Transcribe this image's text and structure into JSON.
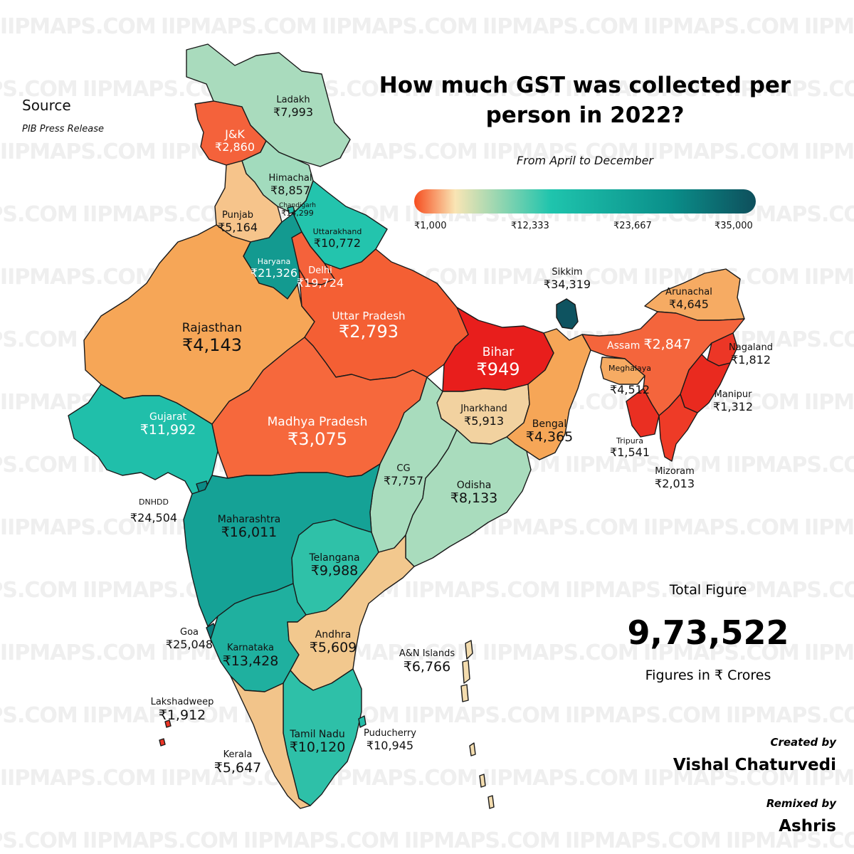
{
  "title": "How much GST was collected per person in 2022?",
  "subtitle": "From April to December",
  "source": {
    "heading": "Source",
    "text": "PIB Press Release"
  },
  "legend": {
    "ticks": [
      "₹1,000",
      "₹12,333",
      "₹23,667",
      "₹35,000"
    ],
    "min": 1000,
    "max": 35000,
    "colors": [
      "#f64d1f",
      "#f9e5b4",
      "#1fc4ad",
      "#0a8f8a",
      "#0e4f5c"
    ]
  },
  "total": {
    "label": "Total Figure",
    "value": "9,73,522",
    "unit_note": "Figures in ₹ Crores"
  },
  "credits": {
    "created_label": "Created by",
    "created_name": "Vishal Chaturvedi",
    "remixed_label": "Remixed by",
    "remixed_name": "Ashris"
  },
  "watermark": "IIPMAPS.COM",
  "regions": [
    {
      "name": "Ladakh",
      "value": "₹7,993",
      "color": "#a9dbbd"
    },
    {
      "name": "J&K",
      "value": "₹2,860",
      "color": "#f4623b"
    },
    {
      "name": "Himachal",
      "value": "₹8,857",
      "color": "#a2dbbd"
    },
    {
      "name": "Chandigarh",
      "value": "₹14,299",
      "color": "#22c0ac"
    },
    {
      "name": "Punjab",
      "value": "₹5,164",
      "color": "#f6c48b"
    },
    {
      "name": "Uttarakhand",
      "value": "₹10,772",
      "color": "#23c4ad"
    },
    {
      "name": "Haryana",
      "value": "₹21,326",
      "color": "#139a90"
    },
    {
      "name": "Delhi",
      "value": "₹19,724",
      "color": "#f4623b"
    },
    {
      "name": "Rajasthan",
      "value": "₹4,143",
      "color": "#f6a657"
    },
    {
      "name": "Uttar Pradesh",
      "value": "₹2,793",
      "color": "#f45f34"
    },
    {
      "name": "Bihar",
      "value": "₹949",
      "color": "#e81e1c"
    },
    {
      "name": "Sikkim",
      "value": "₹34,319",
      "color": "#0e5360"
    },
    {
      "name": "Arunachal",
      "value": "₹4,645",
      "color": "#f6ab63"
    },
    {
      "name": "Assam",
      "value": "₹2,847",
      "color": "#f4653c"
    },
    {
      "name": "Nagaland",
      "value": "₹1,812",
      "color": "#ec3626"
    },
    {
      "name": "Meghalaya",
      "value": "₹4,512",
      "color": "#f6ab63"
    },
    {
      "name": "Manipur",
      "value": "₹1,312",
      "color": "#e92a1f"
    },
    {
      "name": "Tripura",
      "value": "₹1,541",
      "color": "#ea2f22"
    },
    {
      "name": "Mizoram",
      "value": "₹2,013",
      "color": "#ee3b27"
    },
    {
      "name": "Gujarat",
      "value": "₹11,992",
      "color": "#20bfaa"
    },
    {
      "name": "DNHDD",
      "value": "₹24,504",
      "color": "#0b8a86"
    },
    {
      "name": "Madhya Pradesh",
      "value": "₹3,075",
      "color": "#f6683c"
    },
    {
      "name": "Jharkhand",
      "value": "₹5,913",
      "color": "#f2d2a0"
    },
    {
      "name": "Bengal",
      "value": "₹4,365",
      "color": "#f6a657"
    },
    {
      "name": "CG",
      "value": "₹7,757",
      "color": "#a8dcbd"
    },
    {
      "name": "Odisha",
      "value": "₹8,133",
      "color": "#a9dcbd"
    },
    {
      "name": "Maharashtra",
      "value": "₹16,011",
      "color": "#15a296"
    },
    {
      "name": "Telangana",
      "value": "₹9,988",
      "color": "#2fc1a8"
    },
    {
      "name": "Goa",
      "value": "₹25,048",
      "color": "#0b7d7e"
    },
    {
      "name": "Karnataka",
      "value": "₹13,428",
      "color": "#1fb09f"
    },
    {
      "name": "Andhra",
      "value": "₹5,609",
      "color": "#f2c88e"
    },
    {
      "name": "A&N Islands",
      "value": "₹6,766",
      "color": "#f3dcae"
    },
    {
      "name": "Lakshadweep",
      "value": "₹1,912",
      "color": "#ec3626"
    },
    {
      "name": "Kerala",
      "value": "₹5,647",
      "color": "#f2c48a"
    },
    {
      "name": "Tamil Nadu",
      "value": "₹10,120",
      "color": "#2ec0a8"
    },
    {
      "name": "Puducherry",
      "value": "₹10,945",
      "color": "#23bca8"
    }
  ]
}
